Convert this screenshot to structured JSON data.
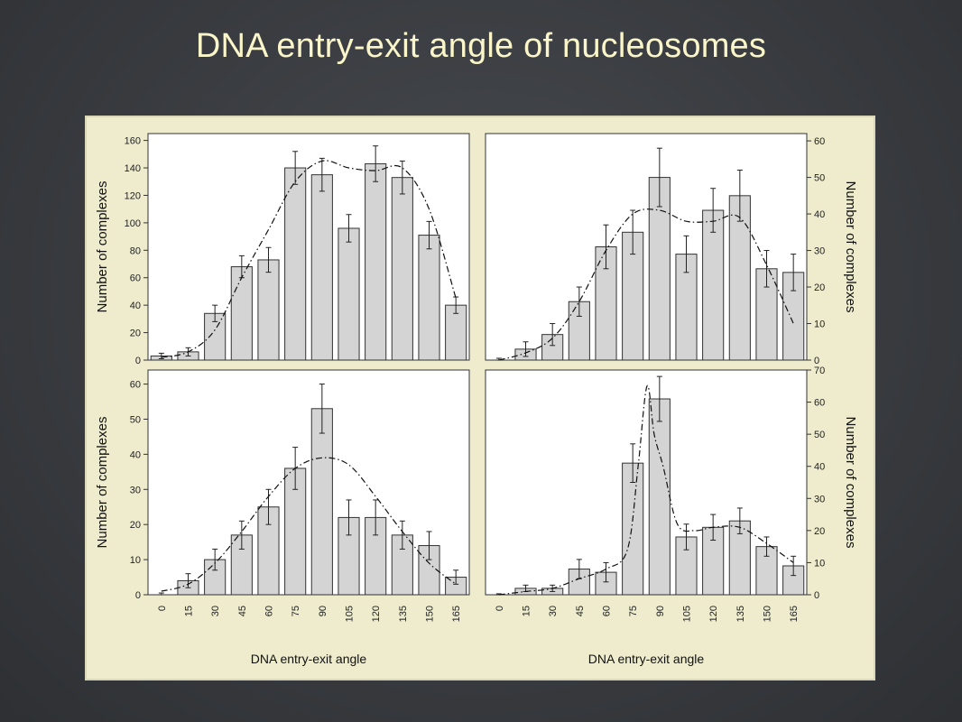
{
  "slide": {
    "title": "DNA entry-exit angle of nucleosomes"
  },
  "chart_data": [
    {
      "id": "top-left",
      "type": "bar",
      "categories": [
        "0",
        "15",
        "30",
        "45",
        "60",
        "75",
        "90",
        "105",
        "120",
        "135",
        "150",
        "165"
      ],
      "values": [
        3,
        6,
        34,
        68,
        73,
        140,
        135,
        96,
        143,
        133,
        91,
        40
      ],
      "errors": [
        2,
        3,
        6,
        8,
        9,
        12,
        12,
        10,
        13,
        12,
        10,
        6
      ],
      "fit_curve": [
        [
          0,
          2
        ],
        [
          15,
          6
        ],
        [
          30,
          22
        ],
        [
          45,
          60
        ],
        [
          60,
          95
        ],
        [
          75,
          130
        ],
        [
          90,
          145
        ],
        [
          105,
          140
        ],
        [
          120,
          138
        ],
        [
          135,
          140
        ],
        [
          150,
          110
        ],
        [
          165,
          45
        ]
      ],
      "ylim": [
        0,
        165
      ],
      "yticks": [
        0,
        20,
        40,
        60,
        80,
        100,
        120,
        140,
        160
      ],
      "ylabel": "Number of complexes",
      "xlabel": "",
      "ylabel_side": "left",
      "show_xticks": false
    },
    {
      "id": "top-right",
      "type": "bar",
      "categories": [
        "0",
        "15",
        "30",
        "45",
        "60",
        "75",
        "90",
        "105",
        "120",
        "135",
        "150",
        "165"
      ],
      "values": [
        0,
        3,
        7,
        16,
        31,
        35,
        50,
        29,
        41,
        45,
        25,
        24
      ],
      "errors": [
        0.5,
        2,
        3,
        4,
        6,
        6,
        8,
        5,
        6,
        7,
        5,
        5
      ],
      "fit_curve": [
        [
          0,
          0
        ],
        [
          15,
          2
        ],
        [
          30,
          6
        ],
        [
          45,
          16
        ],
        [
          60,
          30
        ],
        [
          75,
          40
        ],
        [
          90,
          41
        ],
        [
          105,
          38
        ],
        [
          120,
          38
        ],
        [
          135,
          39
        ],
        [
          150,
          26
        ],
        [
          165,
          10
        ]
      ],
      "ylim": [
        0,
        62
      ],
      "yticks": [
        0,
        10,
        20,
        30,
        40,
        50,
        60
      ],
      "ylabel": "Number of complexes",
      "xlabel": "",
      "ylabel_side": "right",
      "show_xticks": false
    },
    {
      "id": "bottom-left",
      "type": "bar",
      "categories": [
        "0",
        "15",
        "30",
        "45",
        "60",
        "75",
        "90",
        "105",
        "120",
        "135",
        "150",
        "165"
      ],
      "values": [
        0,
        4,
        10,
        17,
        25,
        36,
        53,
        22,
        22,
        17,
        14,
        5
      ],
      "errors": [
        0.5,
        2,
        3,
        4,
        5,
        6,
        7,
        5,
        5,
        4,
        4,
        2
      ],
      "fit_curve": [
        [
          0,
          1
        ],
        [
          15,
          3
        ],
        [
          30,
          9
        ],
        [
          45,
          18
        ],
        [
          60,
          28
        ],
        [
          75,
          36
        ],
        [
          90,
          39
        ],
        [
          105,
          37
        ],
        [
          120,
          28
        ],
        [
          135,
          18
        ],
        [
          150,
          9
        ],
        [
          165,
          3
        ]
      ],
      "ylim": [
        0,
        64
      ],
      "yticks": [
        0,
        10,
        20,
        30,
        40,
        50,
        60
      ],
      "ylabel": "Number of complexes",
      "xlabel": "DNA entry-exit angle",
      "ylabel_side": "left",
      "show_xticks": true
    },
    {
      "id": "bottom-right",
      "type": "bar",
      "categories": [
        "0",
        "15",
        "30",
        "45",
        "60",
        "75",
        "90",
        "105",
        "120",
        "135",
        "150",
        "165"
      ],
      "values": [
        0,
        2,
        2,
        8,
        7,
        41,
        61,
        18,
        21,
        23,
        15,
        9
      ],
      "errors": [
        0.3,
        1,
        1,
        3,
        3,
        6,
        7,
        4,
        4,
        4,
        3,
        3
      ],
      "fit_curve": [
        [
          0,
          0
        ],
        [
          15,
          1
        ],
        [
          30,
          2
        ],
        [
          45,
          5
        ],
        [
          60,
          8
        ],
        [
          72,
          14
        ],
        [
          78,
          40
        ],
        [
          83,
          65
        ],
        [
          87,
          50
        ],
        [
          92,
          40
        ],
        [
          100,
          22
        ],
        [
          110,
          20
        ],
        [
          120,
          21
        ],
        [
          135,
          21
        ],
        [
          150,
          16
        ],
        [
          165,
          10
        ]
      ],
      "ylim": [
        0,
        70
      ],
      "yticks": [
        0,
        10,
        20,
        30,
        40,
        50,
        60,
        70
      ],
      "ylabel": "Number of complexes",
      "xlabel": "DNA entry-exit angle",
      "ylabel_side": "right",
      "show_xticks": true
    }
  ]
}
